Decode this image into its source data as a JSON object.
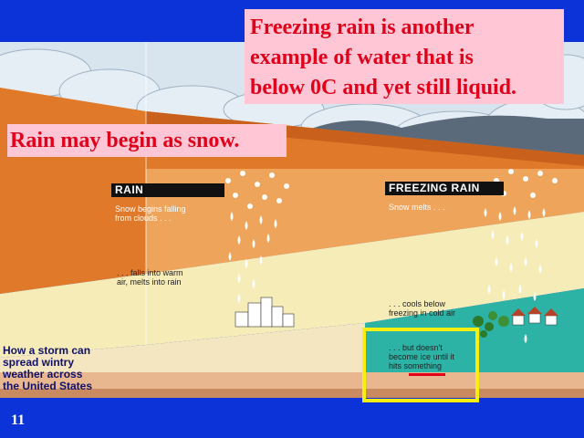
{
  "callouts": {
    "freezing_rain": "Freezing rain is another\nexample of water that is\nbelow 0C and yet still liquid.",
    "rain_snow": "Rain may begin as snow."
  },
  "diagram": {
    "rain_panel": {
      "title": "RAIN",
      "step1": "Snow begins falling\nfrom clouds . . .",
      "step2": ". . . falls into warm\nair, melts into rain"
    },
    "freezing_rain_panel": {
      "title": "FREEZING RAIN",
      "step1": "Snow melts . . .",
      "step2": ". . . cools below\nfreezing in cold air",
      "step3": ". . . but doesn't\nbecome ice until it\nhits something"
    },
    "caption": "How a storm can\nspread wintry\nweather across\nthe United States"
  },
  "slide": {
    "number": "11"
  },
  "colors": {
    "background": "#0b33d8",
    "callout_fill": "#ffc7d6",
    "callout_text": "#e0001a",
    "warm_layer": "#e07a2a",
    "cool_layer": "#f6ecb8",
    "cold_layer": "#2cb3a6",
    "highlight": "#f5ee0f"
  }
}
